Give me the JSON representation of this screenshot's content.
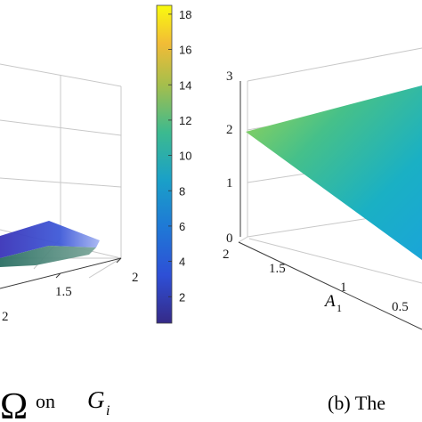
{
  "chart_data": [
    {
      "panel": "a",
      "type": "surface3d",
      "x_ticks": [
        "1.5",
        "2"
      ],
      "xlabel_fragment": "2",
      "colorbar": {
        "ticks": [
          "2",
          "4",
          "6",
          "8",
          "10",
          "12",
          "14",
          "16",
          "18"
        ],
        "range": [
          0.5,
          18.5
        ],
        "colormap": "parula"
      },
      "caption": {
        "symbol": "Ω",
        "word": "on",
        "var": "G",
        "sub": "i"
      }
    },
    {
      "panel": "b",
      "type": "surface3d",
      "z_ticks": [
        "0",
        "1",
        "2",
        "3"
      ],
      "x_ticks": [
        "2",
        "1.5",
        "1",
        "0.5"
      ],
      "xlabel": {
        "var": "A",
        "sub": "1"
      },
      "caption": "(b) The"
    }
  ],
  "colors": {
    "parula_low": "#352a87",
    "parula_mid": "#1fa8a8",
    "parula_high": "#f9fb0e"
  }
}
